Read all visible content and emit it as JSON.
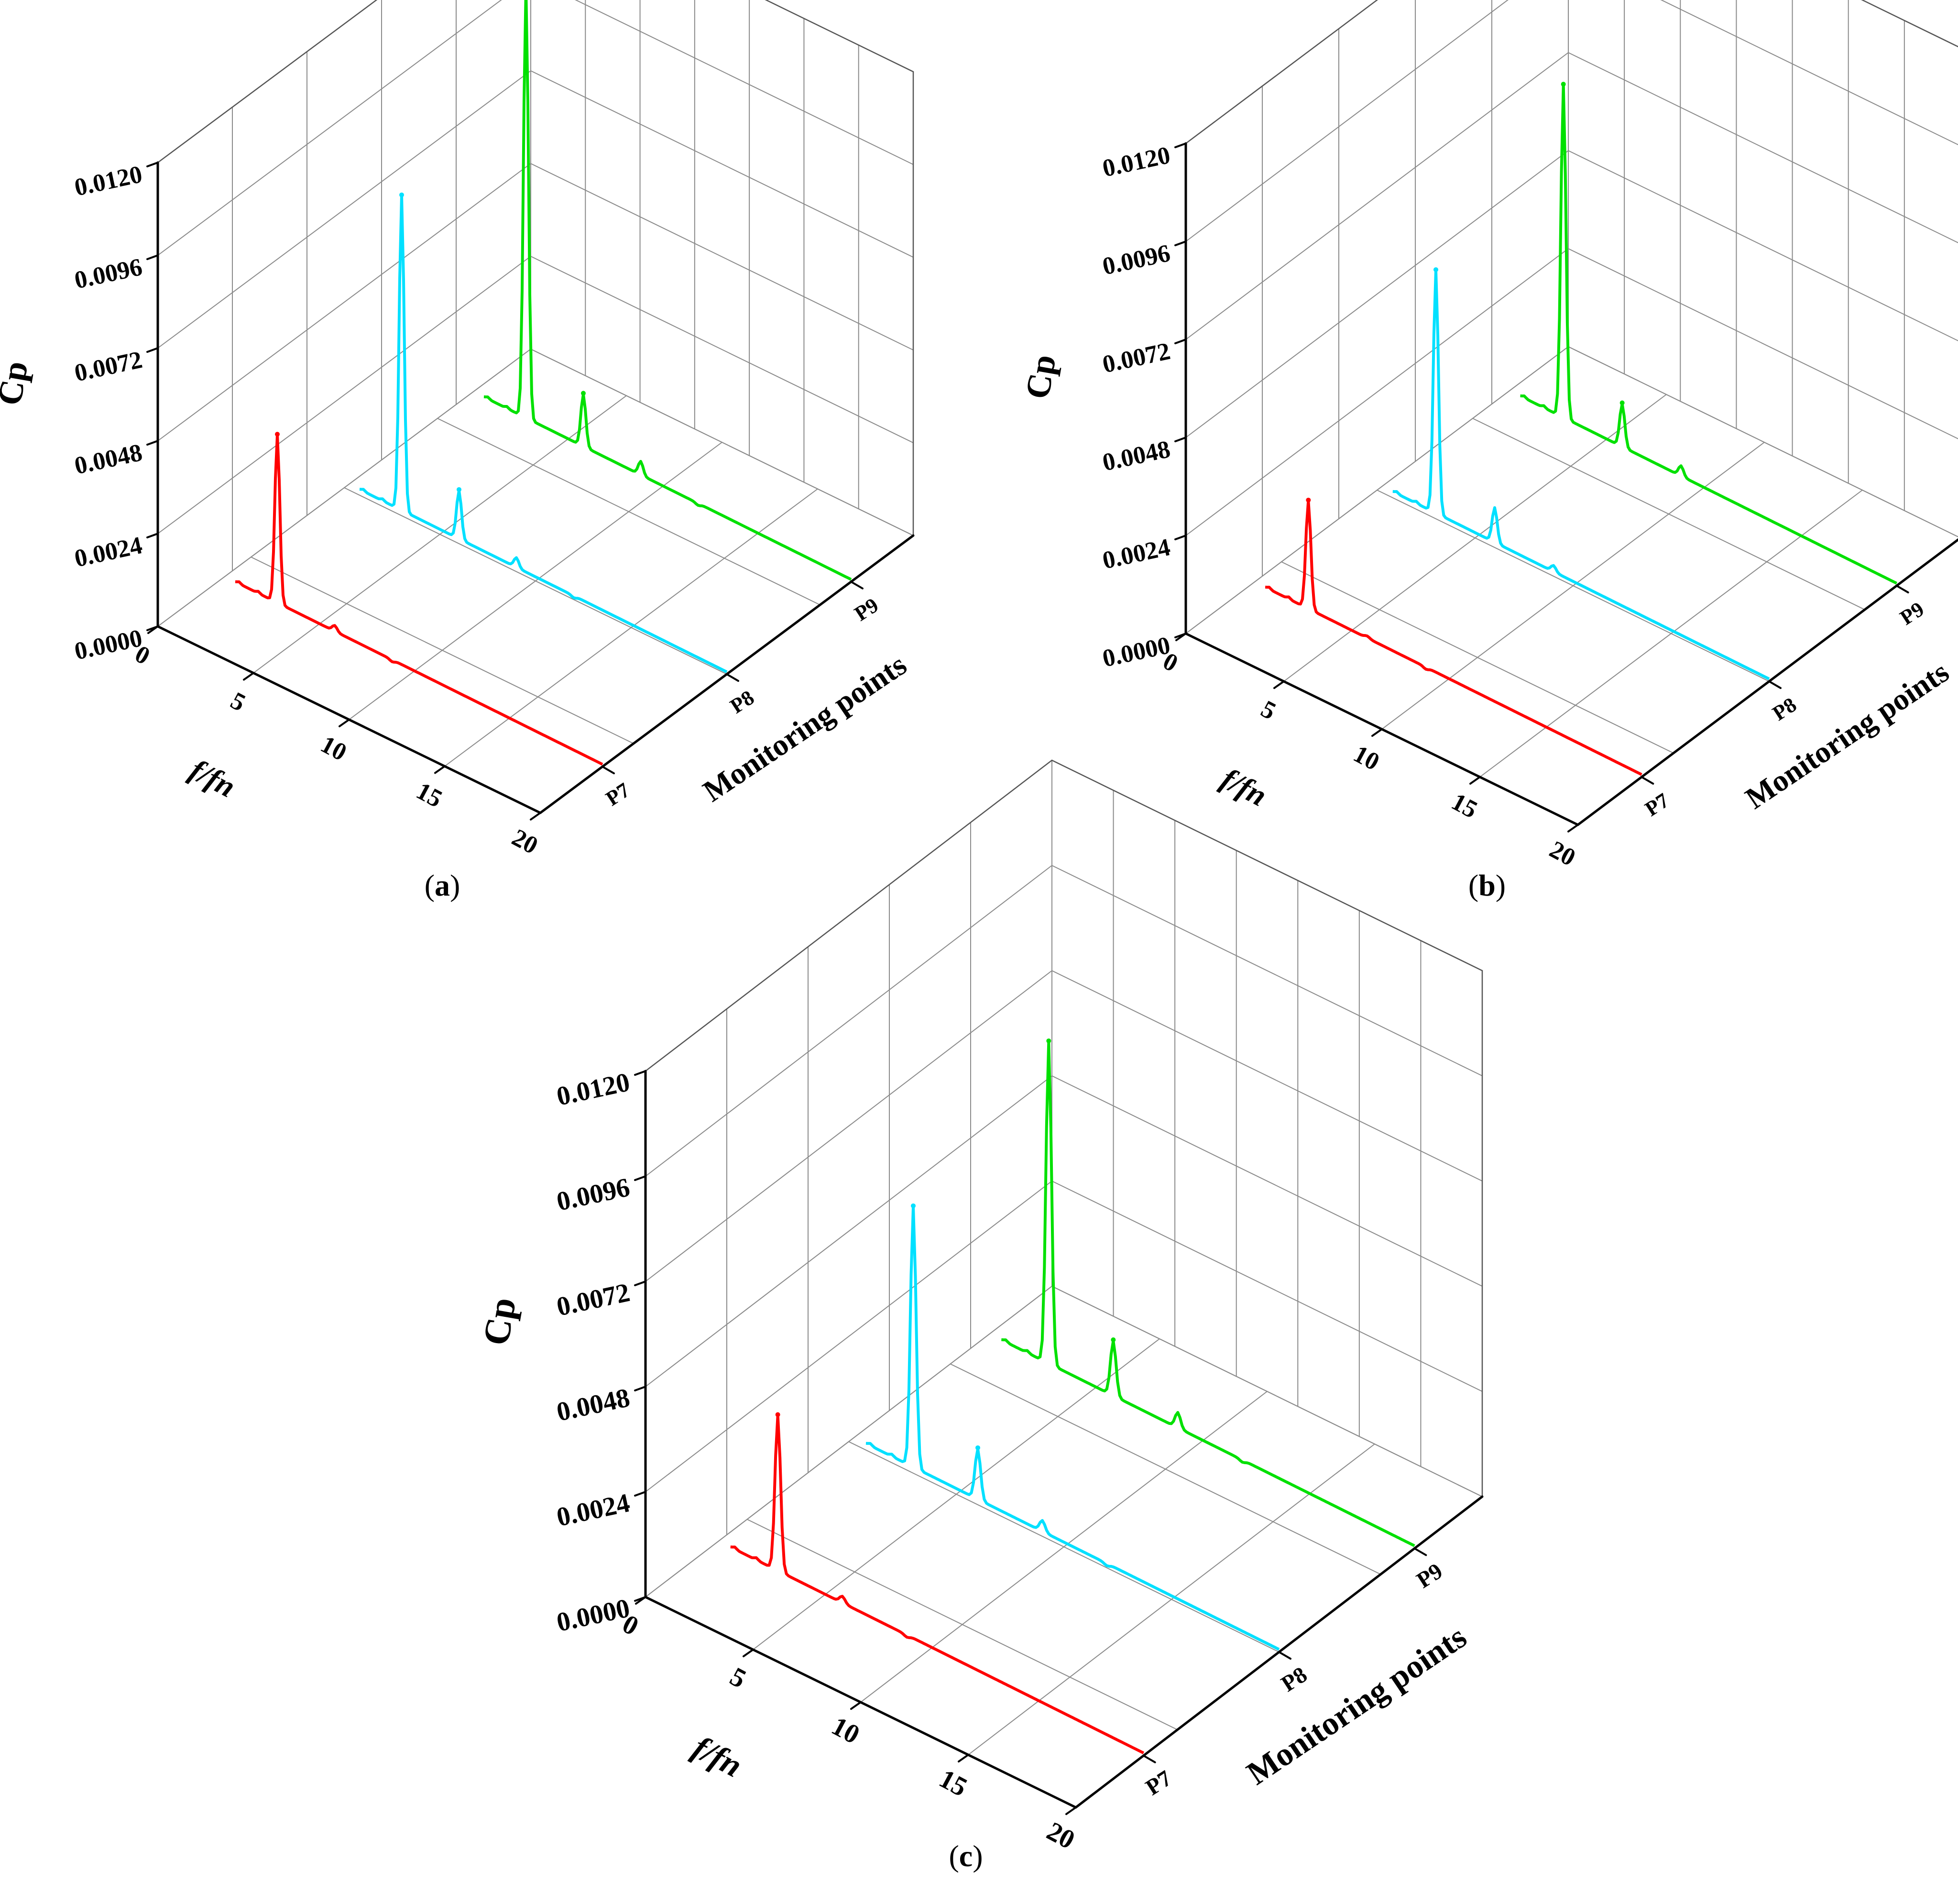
{
  "figure": {
    "panels": [
      {
        "caption_open": "(",
        "caption_letter": "a",
        "caption_close": ")"
      },
      {
        "caption_open": "(",
        "caption_letter": "b",
        "caption_close": ")"
      },
      {
        "caption_open": "(",
        "caption_letter": "c",
        "caption_close": ")"
      }
    ]
  },
  "chart_data": [
    {
      "type": "line",
      "subtype": "3d-waterfall",
      "panel": "a",
      "xlabel": "f/fn",
      "ylabel": "Monitoring points",
      "zlabel": "Cp",
      "xlim": [
        0,
        20
      ],
      "x_ticks": [
        "0",
        "5",
        "10",
        "15",
        "20"
      ],
      "z_ticks": [
        "0.0000",
        "0.0024",
        "0.0048",
        "0.0072",
        "0.0096",
        "0.0120"
      ],
      "zlim": [
        0,
        0.012
      ],
      "categories": [
        "P7",
        "P8",
        "P9"
      ],
      "grid": true,
      "series": [
        {
          "name": "P7",
          "color": "#ff0000",
          "peaks": [
            [
              1,
              0.0002
            ],
            [
              2,
              0.0002
            ],
            [
              3,
              0.0045
            ],
            [
              6,
              0.0003
            ],
            [
              9,
              0.0001
            ]
          ]
        },
        {
          "name": "P8",
          "color": "#00e0ff",
          "peaks": [
            [
              1,
              0.0002
            ],
            [
              2,
              0.0002
            ],
            [
              3,
              0.0083
            ],
            [
              6,
              0.0014
            ],
            [
              9,
              0.0004
            ],
            [
              12,
              0.0001
            ]
          ]
        },
        {
          "name": "P9",
          "color": "#00e000",
          "peaks": [
            [
              1,
              0.0002
            ],
            [
              2,
              0.0002
            ],
            [
              3,
              0.0113
            ],
            [
              6,
              0.0015
            ],
            [
              9,
              0.0005
            ],
            [
              12,
              0.0001
            ]
          ]
        }
      ]
    },
    {
      "type": "line",
      "subtype": "3d-waterfall",
      "panel": "b",
      "xlabel": "f/fn",
      "ylabel": "Monitoring points",
      "zlabel": "Cp",
      "xlim": [
        0,
        20
      ],
      "x_ticks": [
        "0",
        "5",
        "10",
        "15",
        "20"
      ],
      "z_ticks": [
        "0.0000",
        "0.0024",
        "0.0048",
        "0.0072",
        "0.0096",
        "0.0120"
      ],
      "zlim": [
        0,
        0.012
      ],
      "categories": [
        "P7",
        "P8",
        "P9"
      ],
      "grid": true,
      "series": [
        {
          "name": "P7",
          "color": "#ff0000",
          "peaks": [
            [
              1,
              0.0002
            ],
            [
              2,
              0.0002
            ],
            [
              3,
              0.0028
            ],
            [
              6,
              0.0002
            ],
            [
              9,
              0.0001
            ]
          ]
        },
        {
          "name": "P8",
          "color": "#00e0ff",
          "peaks": [
            [
              1,
              0.0002
            ],
            [
              2,
              0.0002
            ],
            [
              3,
              0.0061
            ],
            [
              6,
              0.001
            ],
            [
              9,
              0.0003
            ]
          ]
        },
        {
          "name": "P9",
          "color": "#00e000",
          "peaks": [
            [
              1,
              0.0002
            ],
            [
              2,
              0.0002
            ],
            [
              3,
              0.0083
            ],
            [
              6,
              0.0012
            ],
            [
              9,
              0.0004
            ]
          ]
        }
      ]
    },
    {
      "type": "line",
      "subtype": "3d-waterfall",
      "panel": "c",
      "xlabel": "f/fn",
      "ylabel": "Monitoring points",
      "zlabel": "Cp",
      "xlim": [
        0,
        20
      ],
      "x_ticks": [
        "0",
        "5",
        "10",
        "15",
        "20"
      ],
      "z_ticks": [
        "0.0000",
        "0.0024",
        "0.0048",
        "0.0072",
        "0.0096",
        "0.0120"
      ],
      "zlim": [
        0,
        0.012
      ],
      "categories": [
        "P7",
        "P8",
        "P9"
      ],
      "grid": true,
      "series": [
        {
          "name": "P7",
          "color": "#ff0000",
          "peaks": [
            [
              1,
              0.0002
            ],
            [
              2,
              0.0002
            ],
            [
              3,
              0.0037
            ],
            [
              6,
              0.0003
            ],
            [
              9,
              0.0001
            ]
          ]
        },
        {
          "name": "P8",
          "color": "#00e0ff",
          "peaks": [
            [
              1,
              0.0002
            ],
            [
              2,
              0.0002
            ],
            [
              3,
              0.0061
            ],
            [
              6,
              0.0013
            ],
            [
              9,
              0.0004
            ],
            [
              12,
              0.0001
            ]
          ]
        },
        {
          "name": "P9",
          "color": "#00e000",
          "peaks": [
            [
              1,
              0.0002
            ],
            [
              2,
              0.0002
            ],
            [
              3,
              0.0075
            ],
            [
              6,
              0.0014
            ],
            [
              9,
              0.0005
            ],
            [
              12,
              0.0001
            ]
          ]
        }
      ]
    }
  ]
}
